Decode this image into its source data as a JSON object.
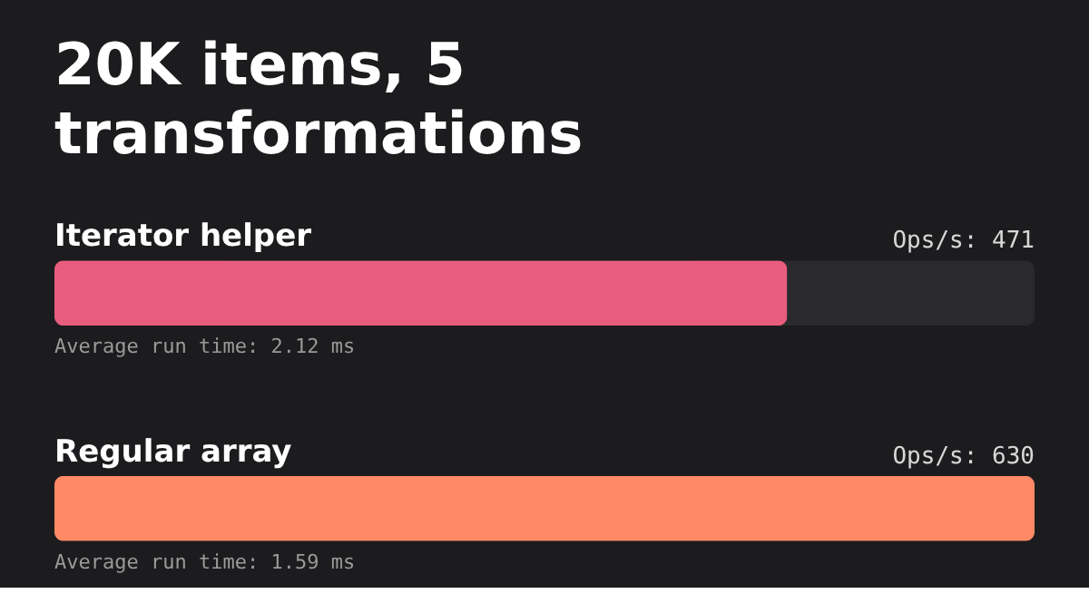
{
  "chart_data": {
    "type": "bar",
    "orientation": "horizontal",
    "title": "20K items, 5 transformations",
    "categories": [
      "Iterator helper",
      "Regular array"
    ],
    "values": [
      471,
      630
    ],
    "colors": [
      "#e85d7e",
      "#ff8a65"
    ],
    "value_labels": [
      "Ops/s: 471",
      "Ops/s: 630"
    ],
    "annotations": [
      "Average run time: 2.12 ms",
      "Average run time: 1.59 ms"
    ],
    "tick_labels": false
  }
}
